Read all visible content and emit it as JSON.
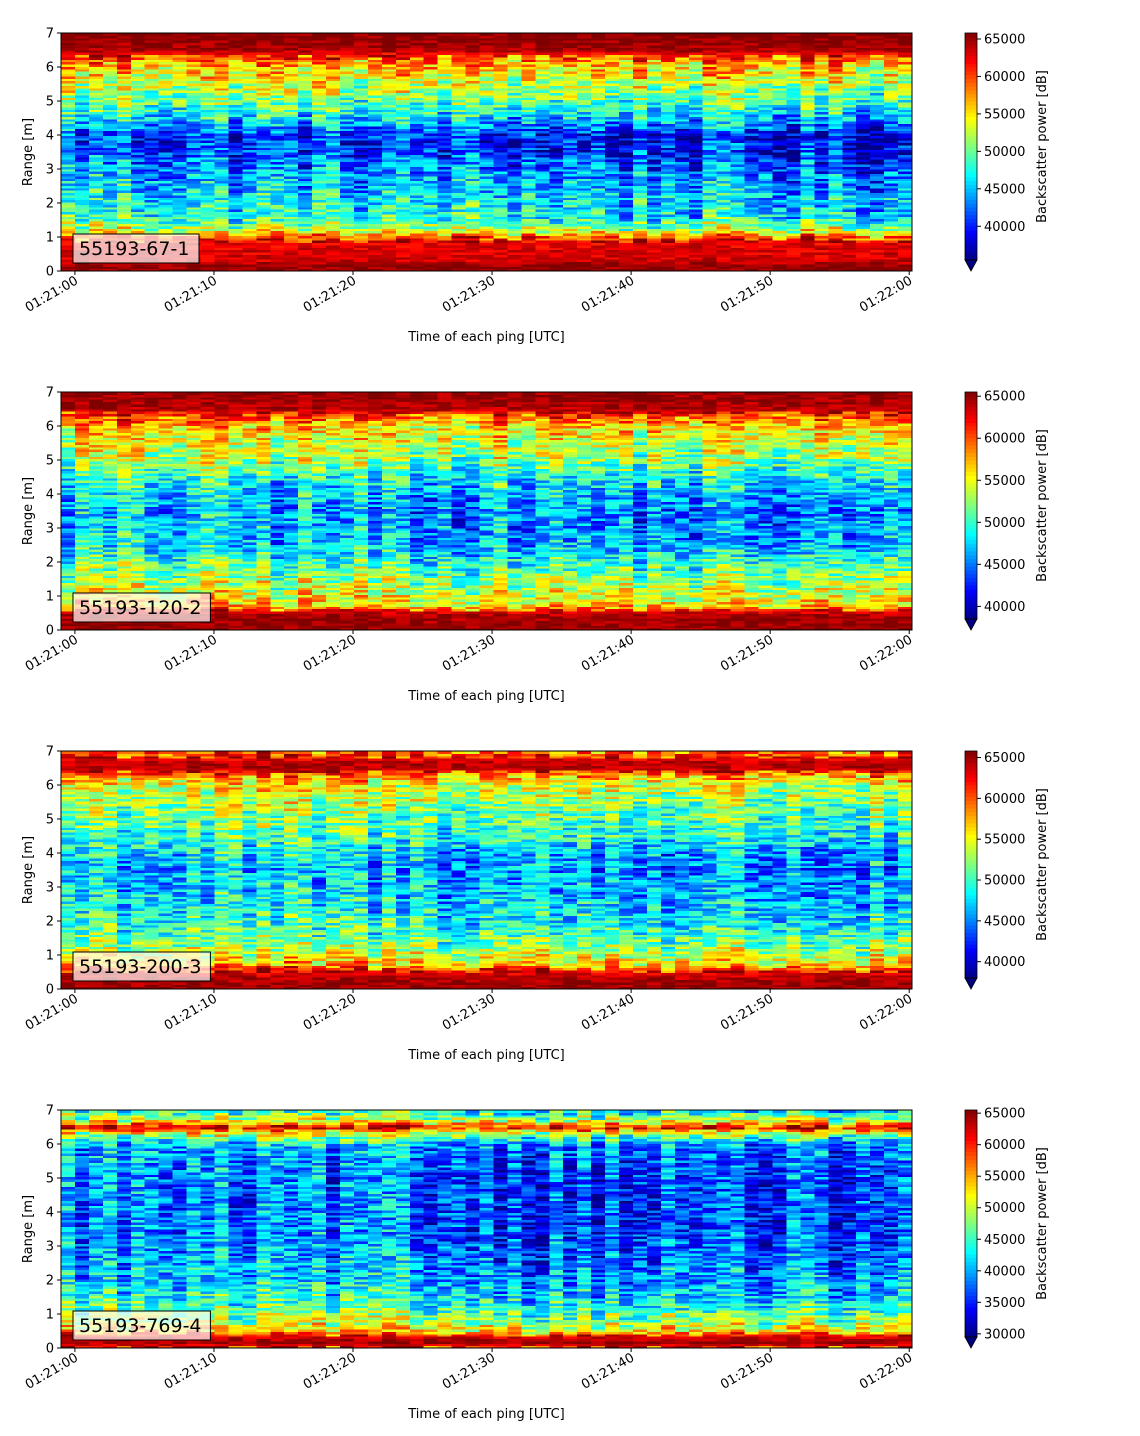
{
  "chart_data": [
    {
      "type": "heatmap",
      "title": "",
      "xlabel": "Time of each ping [UTC]",
      "ylabel": "Range [m]",
      "xtick_labels": [
        "01:21:00",
        "01:21:10",
        "01:21:20",
        "01:21:30",
        "01:21:40",
        "01:21:50",
        "01:22:00"
      ],
      "x_range_seconds": [
        -1,
        60.2
      ],
      "ylim": [
        0,
        7
      ],
      "yticks": [
        0,
        1,
        2,
        3,
        4,
        5,
        6,
        7
      ],
      "annotation": "55193-67-1",
      "colorbar": {
        "label": "Backscatter power [dB]",
        "cmap": "jet",
        "vmin": 35500,
        "vmax": 65800,
        "ticks": [
          40000,
          45000,
          50000,
          55000,
          60000,
          65000
        ],
        "extend": "min"
      },
      "profile": [
        [
          0,
          0.98
        ],
        [
          0.2,
          0.98
        ],
        [
          0.3,
          0.92
        ],
        [
          0.8,
          0.9
        ],
        [
          1.0,
          0.82
        ],
        [
          1.2,
          0.6
        ],
        [
          1.6,
          0.42
        ],
        [
          2.0,
          0.4
        ],
        [
          2.5,
          0.35
        ],
        [
          3.0,
          0.3
        ],
        [
          3.5,
          0.22
        ],
        [
          4.0,
          0.2
        ],
        [
          4.4,
          0.35
        ],
        [
          5.0,
          0.5
        ],
        [
          5.5,
          0.6
        ],
        [
          6.0,
          0.7
        ],
        [
          6.3,
          0.8
        ],
        [
          6.5,
          0.96
        ],
        [
          7,
          1.0
        ]
      ]
    },
    {
      "type": "heatmap",
      "title": "",
      "xlabel": "Time of each ping [UTC]",
      "ylabel": "Range [m]",
      "xtick_labels": [
        "01:21:00",
        "01:21:10",
        "01:21:20",
        "01:21:30",
        "01:21:40",
        "01:21:50",
        "01:22:00"
      ],
      "x_range_seconds": [
        -1,
        60.2
      ],
      "ylim": [
        0,
        7
      ],
      "yticks": [
        0,
        1,
        2,
        3,
        4,
        5,
        6,
        7
      ],
      "annotation": "55193-120-2",
      "colorbar": {
        "label": "Backscatter power [dB]",
        "cmap": "jet",
        "vmin": 38500,
        "vmax": 65500,
        "ticks": [
          40000,
          45000,
          50000,
          55000,
          60000,
          65000
        ],
        "extend": "min"
      },
      "profile": [
        [
          0,
          0.98
        ],
        [
          0.15,
          0.98
        ],
        [
          0.5,
          0.95
        ],
        [
          0.7,
          0.7
        ],
        [
          1.0,
          0.62
        ],
        [
          1.5,
          0.55
        ],
        [
          2.0,
          0.45
        ],
        [
          2.5,
          0.35
        ],
        [
          3.0,
          0.32
        ],
        [
          3.5,
          0.3
        ],
        [
          4.0,
          0.35
        ],
        [
          4.5,
          0.42
        ],
        [
          5.0,
          0.55
        ],
        [
          5.5,
          0.6
        ],
        [
          6.0,
          0.68
        ],
        [
          6.3,
          0.8
        ],
        [
          6.5,
          0.95
        ],
        [
          7,
          0.98
        ]
      ]
    },
    {
      "type": "heatmap",
      "title": "",
      "xlabel": "Time of each ping [UTC]",
      "ylabel": "Range [m]",
      "xtick_labels": [
        "01:21:00",
        "01:21:10",
        "01:21:20",
        "01:21:30",
        "01:21:40",
        "01:21:50",
        "01:22:00"
      ],
      "x_range_seconds": [
        -1,
        60.2
      ],
      "ylim": [
        0,
        7
      ],
      "yticks": [
        0,
        1,
        2,
        3,
        4,
        5,
        6,
        7
      ],
      "annotation": "55193-200-3",
      "colorbar": {
        "label": "Backscatter power [dB]",
        "cmap": "jet",
        "vmin": 38000,
        "vmax": 65800,
        "ticks": [
          40000,
          45000,
          50000,
          55000,
          60000,
          65000
        ],
        "extend": "min"
      },
      "profile": [
        [
          0,
          0.98
        ],
        [
          0.2,
          0.97
        ],
        [
          0.5,
          0.9
        ],
        [
          0.7,
          0.72
        ],
        [
          1.0,
          0.6
        ],
        [
          1.5,
          0.5
        ],
        [
          2.0,
          0.42
        ],
        [
          2.5,
          0.38
        ],
        [
          3.0,
          0.35
        ],
        [
          3.5,
          0.33
        ],
        [
          4.0,
          0.35
        ],
        [
          4.5,
          0.45
        ],
        [
          5.0,
          0.5
        ],
        [
          5.5,
          0.55
        ],
        [
          6.0,
          0.62
        ],
        [
          6.3,
          0.75
        ],
        [
          6.5,
          0.95
        ],
        [
          6.7,
          0.93
        ],
        [
          7,
          0.78
        ]
      ]
    },
    {
      "type": "heatmap",
      "title": "",
      "xlabel": "Time of each ping [UTC]",
      "ylabel": "Range [m]",
      "xtick_labels": [
        "01:21:00",
        "01:21:10",
        "01:21:20",
        "01:21:30",
        "01:21:40",
        "01:21:50",
        "01:22:00"
      ],
      "x_range_seconds": [
        -1,
        60.2
      ],
      "ylim": [
        0,
        7
      ],
      "yticks": [
        0,
        1,
        2,
        3,
        4,
        5,
        6,
        7
      ],
      "annotation": "55193-769-4",
      "colorbar": {
        "label": "Backscatter power [dB]",
        "cmap": "jet",
        "vmin": 29500,
        "vmax": 65500,
        "ticks": [
          30000,
          35000,
          40000,
          45000,
          50000,
          55000,
          60000,
          65000
        ],
        "extend": "min"
      },
      "profile": [
        [
          0,
          0.85
        ],
        [
          0.2,
          0.98
        ],
        [
          0.35,
          0.9
        ],
        [
          0.5,
          0.68
        ],
        [
          0.8,
          0.55
        ],
        [
          1.2,
          0.45
        ],
        [
          1.6,
          0.38
        ],
        [
          2.0,
          0.33
        ],
        [
          2.5,
          0.3
        ],
        [
          3.0,
          0.27
        ],
        [
          3.5,
          0.25
        ],
        [
          4.0,
          0.25
        ],
        [
          4.5,
          0.25
        ],
        [
          5.0,
          0.25
        ],
        [
          5.5,
          0.27
        ],
        [
          6.0,
          0.32
        ],
        [
          6.3,
          0.55
        ],
        [
          6.5,
          0.9
        ],
        [
          6.7,
          0.6
        ],
        [
          7,
          0.4
        ]
      ]
    }
  ]
}
